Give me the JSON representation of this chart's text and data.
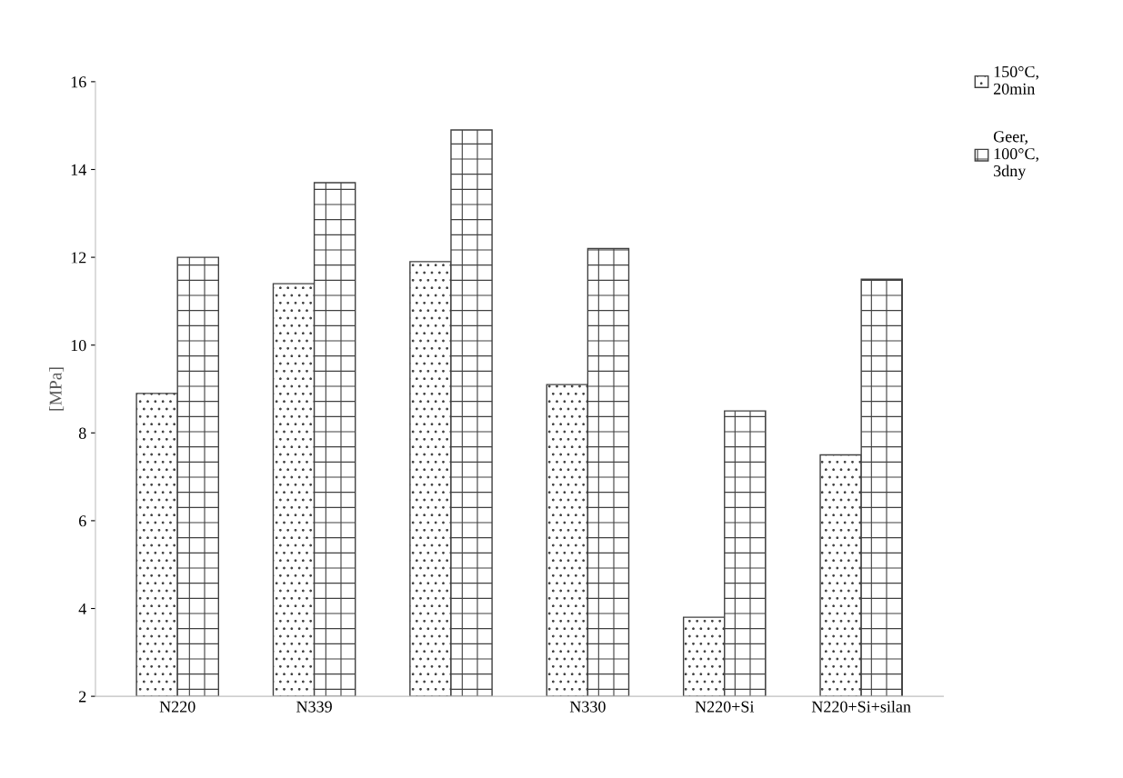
{
  "chart_data": {
    "type": "bar",
    "ylabel": "[MPa]",
    "categories": [
      "N220",
      "N339",
      null,
      "N330",
      "N220+Si",
      "N220+Si+silan"
    ],
    "series": [
      {
        "name": "150°C, 20min",
        "color": "#404040",
        "values": [
          8.9,
          11.4,
          11.9,
          9.1,
          3.8,
          7.5
        ]
      },
      {
        "name": "Geer, 100°C, 3dny",
        "color": "#404040",
        "values": [
          12.0,
          13.7,
          14.9,
          12.2,
          8.5,
          11.5
        ]
      }
    ],
    "ylim": [
      2,
      16
    ],
    "yticks": [
      2,
      4,
      6,
      8,
      10,
      12,
      14,
      16
    ],
    "grid": false,
    "legend": "top right"
  }
}
